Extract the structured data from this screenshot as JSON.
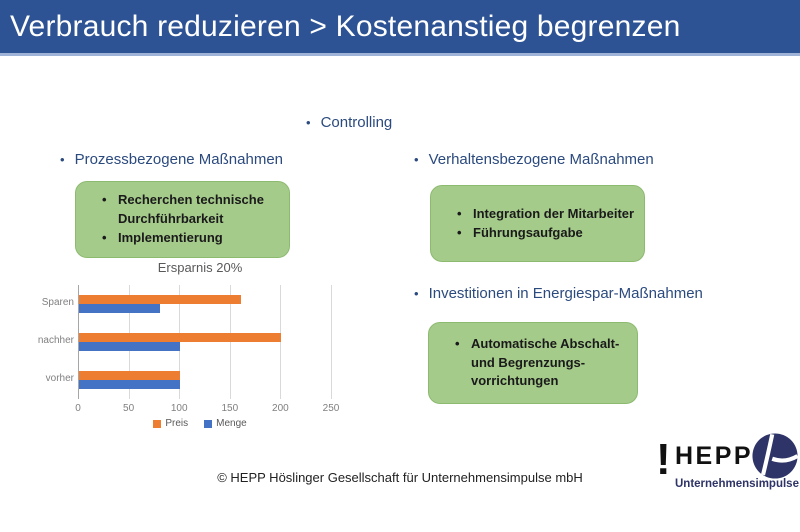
{
  "title": "Verbrauch reduzieren > Kostenanstieg begrenzen",
  "controlling_label": "Controlling",
  "sections": {
    "process": {
      "heading": "Prozessbezogene Maßnahmen",
      "items": [
        "Recherchen technische Durchführbarkeit",
        "Implementierung"
      ]
    },
    "behavior": {
      "heading": "Verhaltensbezogene Maßnahmen",
      "items": [
        "Integration der Mitarbeiter",
        "Führungsaufgabe"
      ]
    },
    "investment": {
      "heading": "Investitionen in Energiespar-Maßnahmen",
      "items": [
        "Automatische Abschalt- und Begrenzungs- vorrichtungen"
      ]
    }
  },
  "chart_data": {
    "type": "bar",
    "orientation": "horizontal",
    "title": "Ersparnis 20%",
    "categories": [
      "Sparen",
      "nachher",
      "vorher"
    ],
    "series": [
      {
        "name": "Preis",
        "color": "#ED7D31",
        "values": [
          160,
          200,
          100
        ]
      },
      {
        "name": "Menge",
        "color": "#4472C4",
        "values": [
          80,
          100,
          100
        ]
      }
    ],
    "xlim": [
      0,
      250
    ],
    "xticks": [
      0,
      50,
      100,
      150,
      200,
      250
    ],
    "grid": true,
    "legend_position": "bottom"
  },
  "footer": {
    "copyright": "© HEPP Höslinger Gesellschaft für Unternehmensimpulse mbH"
  },
  "logo": {
    "mark": "!",
    "name": "HEPP",
    "tagline": "Unternehmensimpulse"
  },
  "colors": {
    "title_bar_blue": "#2E5395",
    "heading_blue": "#2B4A7E",
    "green_box_fill": "#A5CB8B",
    "green_box_border": "#8CBA6F",
    "bar_orange": "#ED7D31",
    "bar_blue": "#4472C4",
    "chart_gray_text": "#808080",
    "logo_navy": "#2E3467"
  }
}
